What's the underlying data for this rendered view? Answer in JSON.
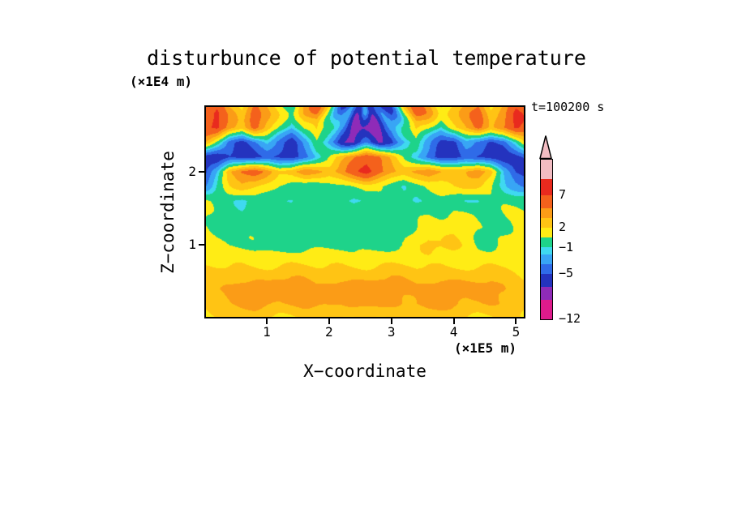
{
  "title": "disturbunce of potential temperature",
  "timestamp": "t=100200 s",
  "x_axis": {
    "label": "X−coordinate",
    "unit": "(×1E5 m)",
    "ticks": [
      1,
      2,
      3,
      4,
      5
    ]
  },
  "y_axis": {
    "label": "Z−coordinate",
    "unit": "(×1E4 m)",
    "ticks": [
      1,
      2
    ]
  },
  "chart_data": {
    "type": "heatmap",
    "title": "disturbunce of potential temperature",
    "time": "t=100200 s",
    "xlabel": "X−coordinate",
    "ylabel": "Z−coordinate",
    "x_unit": "×1E5 m",
    "z_unit": "×1E4 m",
    "x_range": [
      0,
      5.15
    ],
    "z_range": [
      0,
      2.9
    ],
    "colorbar": {
      "range": [
        -12,
        12.5
      ],
      "labels": [
        {
          "text": "7",
          "value": 7
        },
        {
          "text": "2",
          "value": 2
        },
        {
          "text": "−1",
          "value": -1
        },
        {
          "text": "−5",
          "value": -5
        },
        {
          "text": "−12",
          "value": -12
        }
      ],
      "levels": [
        {
          "from": -12,
          "to": -9,
          "color": "#DE1B8C"
        },
        {
          "from": -9,
          "to": -7,
          "color": "#8F2BB8"
        },
        {
          "from": -7,
          "to": -5,
          "color": "#2433BE"
        },
        {
          "from": -5,
          "to": -3.5,
          "color": "#2F6BE8"
        },
        {
          "from": -3.5,
          "to": -2,
          "color": "#38A5F5"
        },
        {
          "from": -2,
          "to": -1,
          "color": "#3FD9F0"
        },
        {
          "from": -1,
          "to": 0.5,
          "color": "#1ED38A"
        },
        {
          "from": 0.5,
          "to": 2,
          "color": "#FFEC15"
        },
        {
          "from": 2,
          "to": 3.5,
          "color": "#FFC414"
        },
        {
          "from": 3.5,
          "to": 5,
          "color": "#FB9C17"
        },
        {
          "from": 5,
          "to": 7,
          "color": "#F4611C"
        },
        {
          "from": 7,
          "to": 9.5,
          "color": "#E92A1E"
        },
        {
          "from": 9.5,
          "to": 12.5,
          "color": "#F2BCC2"
        }
      ],
      "overflow_color": "#F2BCC2"
    },
    "grid": {
      "x0": 0,
      "dx": 0.2,
      "z0": 0,
      "dz": 0.2,
      "values_bottom_to_top": [
        [
          1.4,
          1.6,
          1.8,
          2.0,
          2.2,
          2.0,
          1.8,
          2.0,
          2.2,
          2.4,
          2.2,
          2.0,
          1.8,
          2.0,
          2.2,
          2.4,
          2.2,
          2.0,
          2.2,
          2.4,
          2.2,
          2.0,
          1.8,
          2.0,
          2.2,
          1.8,
          1.5
        ],
        [
          2.2,
          2.8,
          3.4,
          3.8,
          4.2,
          3.8,
          3.4,
          3.8,
          4.2,
          4.0,
          3.6,
          3.2,
          3.6,
          4.0,
          4.3,
          4.0,
          3.6,
          3.8,
          4.2,
          4.0,
          3.6,
          3.2,
          3.4,
          3.8,
          3.6,
          2.8,
          2.2
        ],
        [
          2.6,
          3.4,
          4.1,
          4.5,
          4.3,
          3.9,
          4.3,
          4.6,
          4.2,
          3.8,
          4.2,
          4.6,
          4.3,
          3.9,
          4.3,
          4.6,
          4.2,
          3.9,
          4.3,
          4.6,
          4.2,
          3.8,
          4.0,
          4.3,
          3.9,
          3.0,
          2.6
        ],
        [
          2.0,
          2.4,
          2.8,
          3.1,
          2.9,
          2.7,
          2.9,
          3.1,
          2.9,
          2.7,
          2.9,
          3.1,
          2.9,
          2.7,
          2.9,
          3.1,
          2.9,
          2.7,
          2.9,
          3.1,
          2.9,
          2.7,
          2.5,
          2.7,
          2.5,
          2.2,
          2.0
        ],
        [
          1.7,
          1.5,
          1.3,
          1.5,
          1.3,
          1.1,
          1.3,
          1.5,
          1.3,
          1.1,
          1.3,
          1.5,
          1.3,
          1.1,
          1.3,
          1.5,
          1.3,
          1.1,
          1.3,
          1.5,
          1.3,
          1.1,
          1.2,
          1.4,
          1.2,
          1.3,
          1.5
        ],
        [
          1.3,
          0.9,
          0.4,
          0.2,
          0.1,
          0,
          0,
          0,
          0,
          0,
          0,
          0,
          0,
          0.1,
          0.2,
          0.3,
          0.5,
          1.6,
          2.4,
          2.0,
          2.5,
          1.6,
          0.6,
          0.3,
          0.7,
          1.1,
          1.3
        ],
        [
          1.0,
          0.5,
          0.2,
          0,
          0,
          0,
          0,
          0,
          0,
          0,
          0,
          0,
          0,
          0,
          0.1,
          0.2,
          0.3,
          0.9,
          1.4,
          1.1,
          1.4,
          0.9,
          0.3,
          0.2,
          0.6,
          1.0,
          1.1
        ],
        [
          0.6,
          0.2,
          0,
          -0.2,
          0,
          0,
          -0.2,
          0,
          0,
          0,
          -0.3,
          0,
          0,
          0,
          0,
          0,
          0,
          0.3,
          0.8,
          0.6,
          0.8,
          0.5,
          0,
          0,
          0.4,
          0.8,
          1.0
        ],
        [
          0.3,
          0,
          -0.6,
          -1.4,
          -0.5,
          0,
          -0.6,
          -1.4,
          -0.7,
          0,
          -0.2,
          -0.8,
          -1.2,
          -0.5,
          0,
          -0.2,
          -0.8,
          -1.2,
          -0.5,
          0,
          -0.3,
          -0.8,
          -1.0,
          -0.4,
          0,
          0.3,
          0.5
        ],
        [
          -3.5,
          -1.0,
          1.5,
          3.0,
          2.5,
          1.5,
          0.5,
          0,
          -0.5,
          -1.2,
          -0.6,
          0,
          0.8,
          1.6,
          0.8,
          0,
          -1.0,
          -0.5,
          0.3,
          1.2,
          2.2,
          3.0,
          2.4,
          1.0,
          -1.5,
          -3.5,
          -4.5
        ],
        [
          -5.5,
          -2.0,
          3.5,
          5.2,
          5.8,
          4.2,
          2.6,
          3.2,
          4.8,
          4.2,
          3.0,
          4.2,
          6.0,
          7.8,
          6.0,
          4.2,
          2.8,
          4.0,
          5.0,
          3.4,
          2.6,
          3.4,
          5.0,
          3.0,
          -2.0,
          -5.0,
          -5.8
        ],
        [
          -6.0,
          -6.2,
          -5.0,
          -6.0,
          -5.5,
          -4.5,
          -5.5,
          -6.0,
          -4.0,
          -1.5,
          0.5,
          3.0,
          5.0,
          6.2,
          5.0,
          3.0,
          0.5,
          -1.5,
          -4.0,
          -6.0,
          -5.5,
          -4.5,
          -5.5,
          -6.0,
          -6.2,
          -5.5,
          -4.5
        ],
        [
          3.0,
          -1.0,
          -5.0,
          -6.0,
          -4.0,
          -2.0,
          -4.0,
          -5.5,
          -2.5,
          0,
          -3.0,
          -6.0,
          -6.5,
          -4.5,
          -6.5,
          -6.0,
          -3.0,
          0,
          -2.0,
          -4.5,
          -5.5,
          -3.0,
          -4.5,
          -6.0,
          -5.5,
          -2.0,
          2.5
        ],
        [
          5.5,
          6.5,
          3.0,
          1.0,
          4.5,
          2.0,
          -0.5,
          -2.5,
          1.0,
          3.5,
          0,
          -4.5,
          -6.5,
          -8.5,
          -6.5,
          -4.5,
          0,
          3.5,
          1.0,
          -2.0,
          0.5,
          2.5,
          4.5,
          1.5,
          3.5,
          6.5,
          5.5
        ],
        [
          6.5,
          7.5,
          4.0,
          2.0,
          5.5,
          3.0,
          0.5,
          -1.5,
          2.5,
          4.5,
          1.0,
          -3.5,
          -5.5,
          -4.5,
          -5.5,
          -3.5,
          1.5,
          4.5,
          2.5,
          -0.5,
          1.5,
          3.5,
          5.5,
          2.5,
          4.5,
          7.5,
          6.5
        ]
      ]
    },
    "texture": {
      "amplitude": 0.45,
      "kx": 6.0,
      "kz": 10.0
    },
    "fan": {
      "apex_x": 2.575,
      "apex_z": 3.15,
      "rays": 10,
      "amplitude": 1.8,
      "z_start": 2.15,
      "ramp": 0.6
    }
  }
}
